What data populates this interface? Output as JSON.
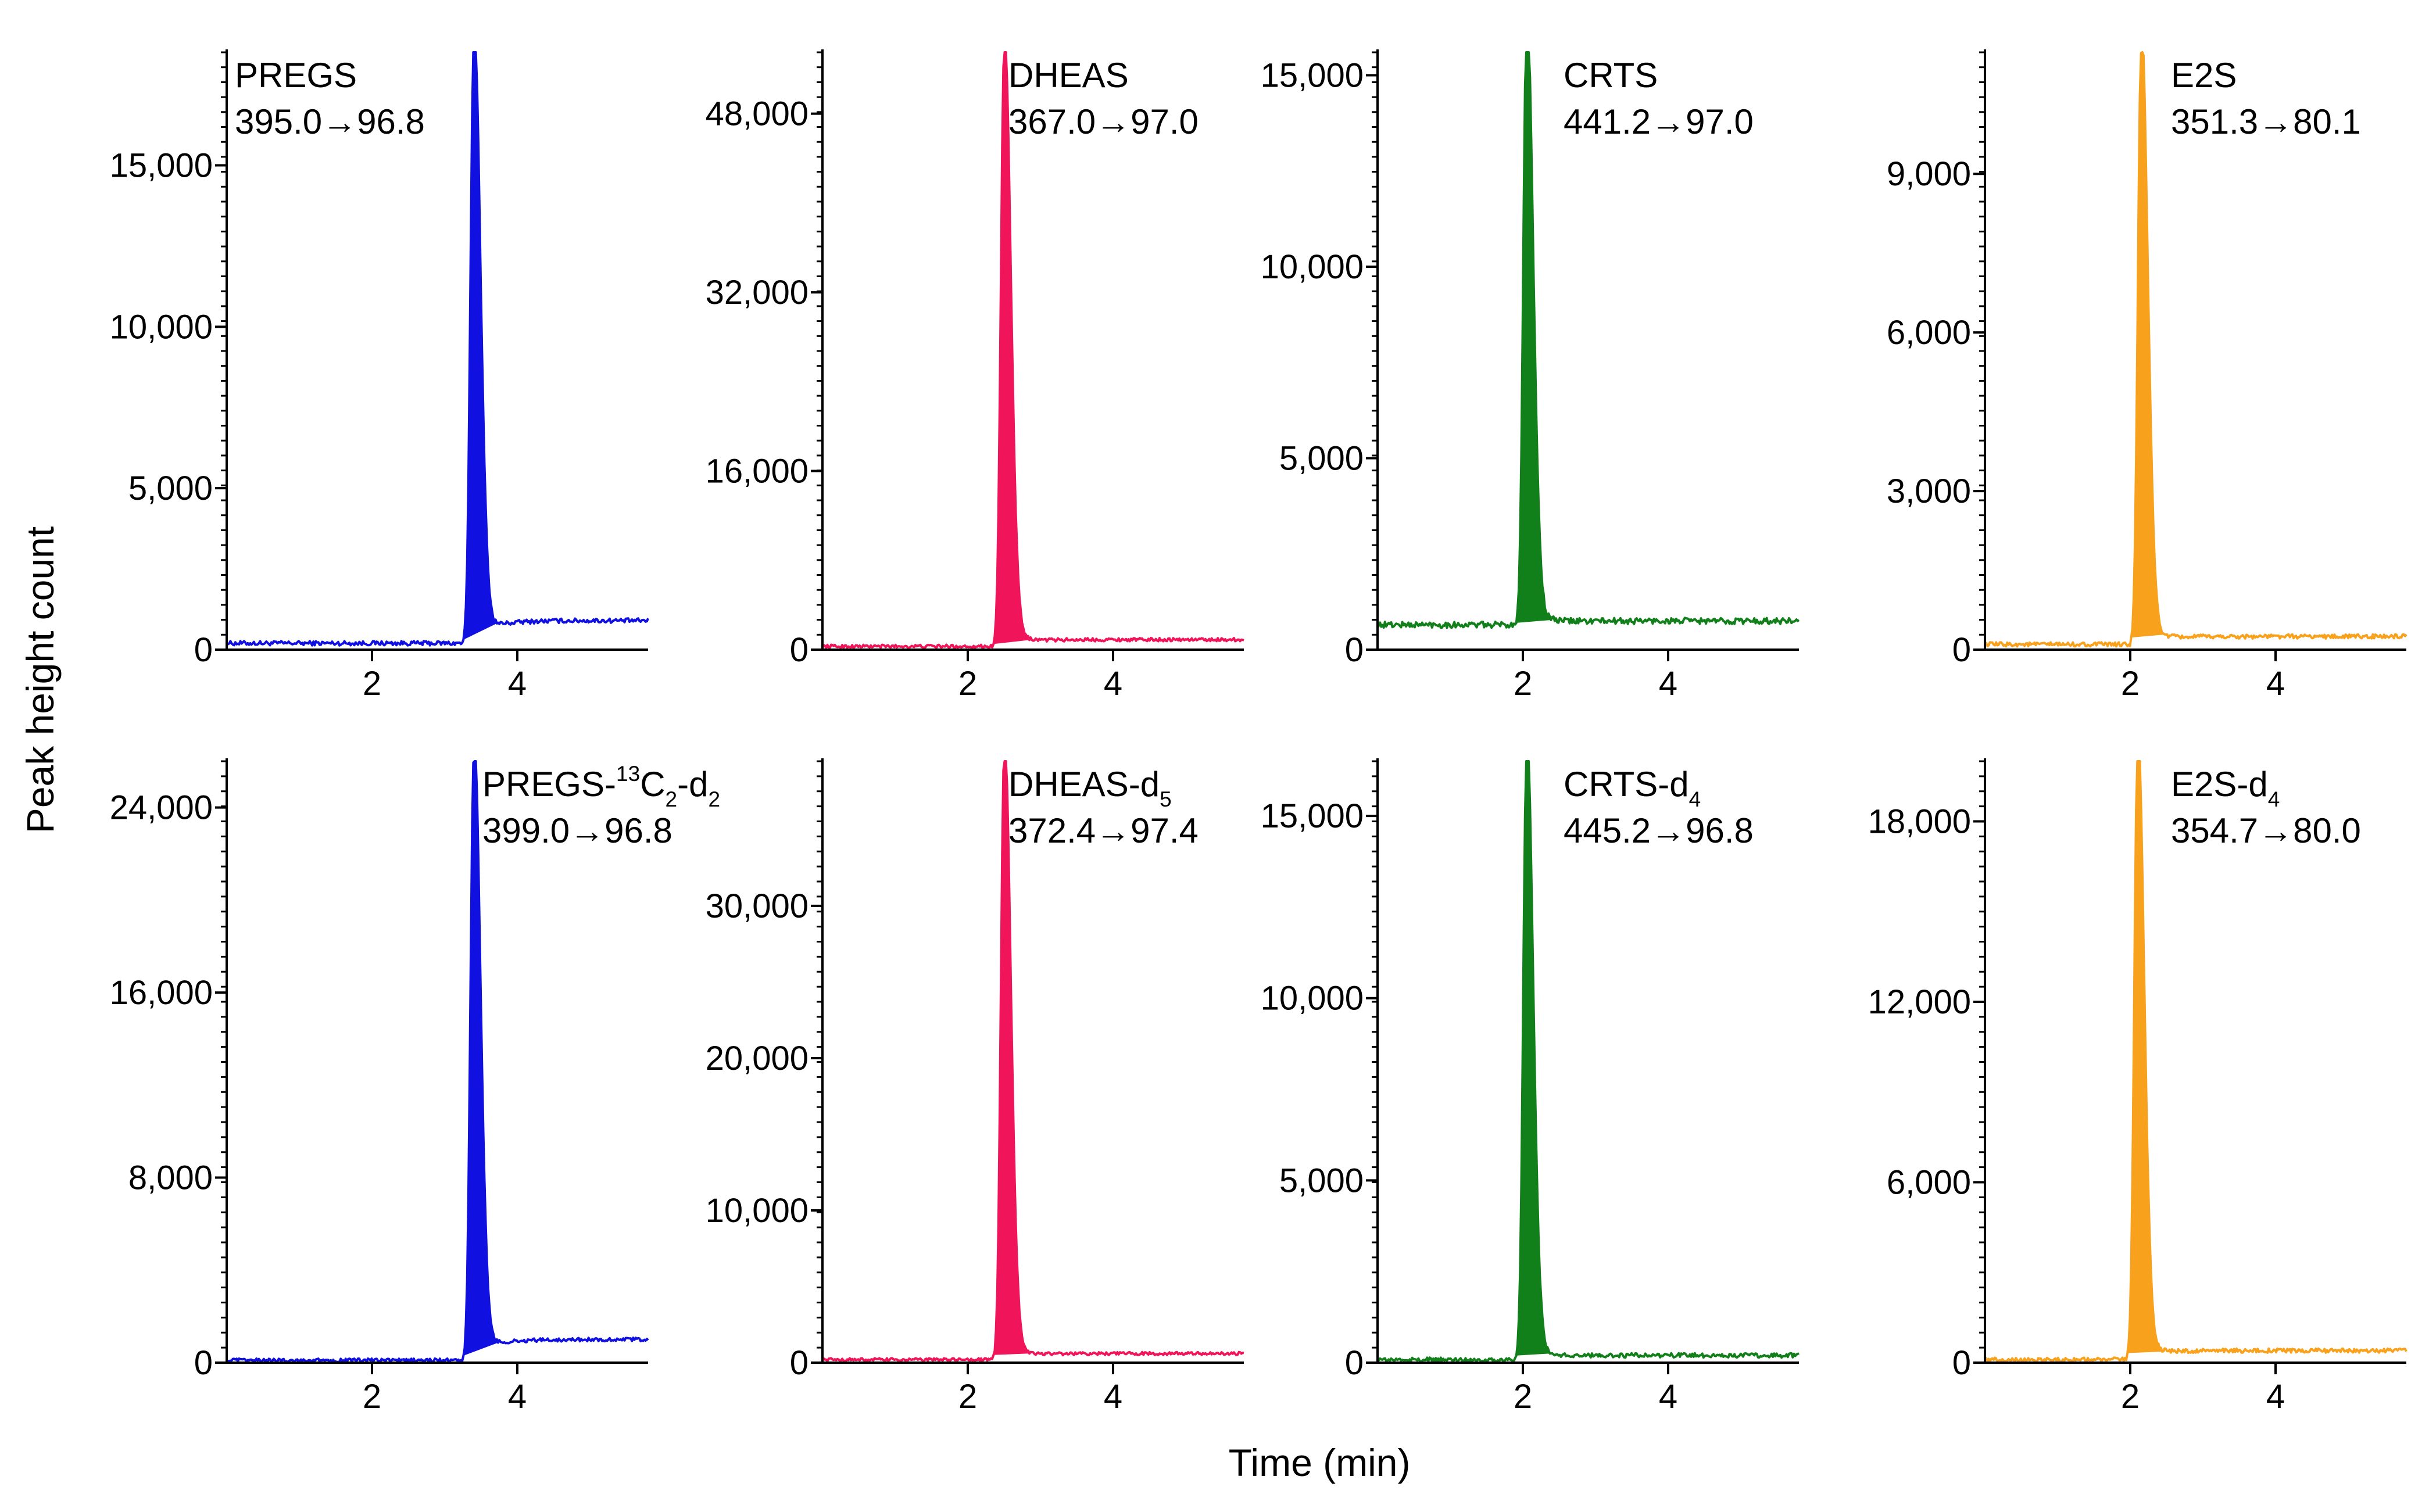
{
  "figure": {
    "ylabel": "Peak height count",
    "xlabel": "Time (min)"
  },
  "chart_data": [
    {
      "type": "line",
      "panel": "top-1",
      "title": "PREGS",
      "transition": "395.0→96.8",
      "color": "#1010e0",
      "xlim": [
        0,
        5.8
      ],
      "xticks": [
        2,
        4
      ],
      "xtick_labels": [
        "2",
        "4"
      ],
      "ylim": [
        0,
        18500
      ],
      "yticks": [
        0,
        5000,
        10000,
        15000
      ],
      "ytick_labels": [
        "0",
        "5,000",
        "10,000",
        "15,000"
      ],
      "baseline": 200,
      "peak_rt": 3.4,
      "peak_height": 18500,
      "tail_level": 900,
      "noise_amp": 70
    },
    {
      "type": "line",
      "panel": "top-2",
      "title": "DHEAS",
      "transition": "367.0→97.0",
      "color": "#f0145a",
      "xlim": [
        0,
        5.8
      ],
      "xticks": [
        2,
        4
      ],
      "xtick_labels": [
        "2",
        "4"
      ],
      "ylim": [
        0,
        53500
      ],
      "yticks": [
        0,
        16000,
        32000,
        48000
      ],
      "ytick_labels": [
        "0",
        "16,000",
        "32,000",
        "48,000"
      ],
      "baseline": 300,
      "peak_rt": 2.5,
      "peak_height": 53000,
      "tail_level": 900,
      "noise_amp": 150
    },
    {
      "type": "line",
      "panel": "top-3",
      "title": "CRTS",
      "transition": "441.2→97.0",
      "color": "#12801a",
      "xlim": [
        0,
        5.8
      ],
      "xticks": [
        2,
        4
      ],
      "xtick_labels": [
        "2",
        "4"
      ],
      "ylim": [
        0,
        15600
      ],
      "yticks": [
        0,
        5000,
        10000,
        15000
      ],
      "ytick_labels": [
        "0",
        "5,000",
        "10,000",
        "15,000"
      ],
      "baseline": 650,
      "peak_rt": 2.05,
      "peak_height": 15500,
      "tail_level": 750,
      "noise_amp": 80
    },
    {
      "type": "line",
      "panel": "top-4",
      "title": "E2S",
      "transition": "351.3→80.1",
      "color": "#f8a11c",
      "xlim": [
        0,
        5.8
      ],
      "xticks": [
        2,
        4
      ],
      "xtick_labels": [
        "2",
        "4"
      ],
      "ylim": [
        0,
        11300
      ],
      "yticks": [
        0,
        3000,
        6000,
        9000
      ],
      "ytick_labels": [
        "0",
        "3,000",
        "6,000",
        "9,000"
      ],
      "baseline": 100,
      "peak_rt": 2.15,
      "peak_height": 11200,
      "tail_level": 250,
      "noise_amp": 40
    },
    {
      "type": "line",
      "panel": "bottom-1",
      "title_main": "PREGS-",
      "title_sup": "13",
      "title_mid": "C",
      "title_sub": "2",
      "title_end": "-d",
      "title_sub2": "2",
      "transition": "399.0→96.8",
      "color": "#1010e0",
      "xlim": [
        0,
        5.8
      ],
      "xticks": [
        2,
        4
      ],
      "xtick_labels": [
        "2",
        "4"
      ],
      "ylim": [
        0,
        26000
      ],
      "yticks": [
        0,
        8000,
        16000,
        24000
      ],
      "ytick_labels": [
        "0",
        "8,000",
        "16,000",
        "24,000"
      ],
      "baseline": 100,
      "peak_rt": 3.4,
      "peak_height": 26000,
      "tail_level": 1000,
      "noise_amp": 80
    },
    {
      "type": "line",
      "panel": "bottom-2",
      "title_main": "DHEAS-d",
      "title_sub": "5",
      "transition": "372.4→97.4",
      "color": "#f0145a",
      "xlim": [
        0,
        5.8
      ],
      "xticks": [
        2,
        4
      ],
      "xtick_labels": [
        "2",
        "4"
      ],
      "ylim": [
        0,
        39500
      ],
      "yticks": [
        0,
        10000,
        20000,
        30000
      ],
      "ytick_labels": [
        "0",
        "10,000",
        "20,000",
        "30,000"
      ],
      "baseline": 200,
      "peak_rt": 2.5,
      "peak_height": 39500,
      "tail_level": 600,
      "noise_amp": 100
    },
    {
      "type": "line",
      "panel": "bottom-3",
      "title_main": "CRTS-d",
      "title_sub": "4",
      "transition": "445.2→96.8",
      "color": "#12801a",
      "xlim": [
        0,
        5.8
      ],
      "xticks": [
        2,
        4
      ],
      "xtick_labels": [
        "2",
        "4"
      ],
      "ylim": [
        0,
        16500
      ],
      "yticks": [
        0,
        5000,
        10000,
        15000
      ],
      "ytick_labels": [
        "0",
        "5,000",
        "10,000",
        "15,000"
      ],
      "baseline": 80,
      "peak_rt": 2.05,
      "peak_height": 16500,
      "tail_level": 200,
      "noise_amp": 60
    },
    {
      "type": "line",
      "panel": "bottom-4",
      "title_main": "E2S-d",
      "title_sub": "4",
      "transition": "354.7→80.0",
      "color": "#f8a11c",
      "xlim": [
        0,
        5.8
      ],
      "xticks": [
        2,
        4
      ],
      "xtick_labels": [
        "2",
        "4"
      ],
      "ylim": [
        0,
        20000
      ],
      "yticks": [
        0,
        6000,
        12000,
        18000
      ],
      "ytick_labels": [
        "0",
        "6,000",
        "12,000",
        "18,000"
      ],
      "baseline": 100,
      "peak_rt": 2.1,
      "peak_height": 20000,
      "tail_level": 400,
      "noise_amp": 70
    }
  ]
}
